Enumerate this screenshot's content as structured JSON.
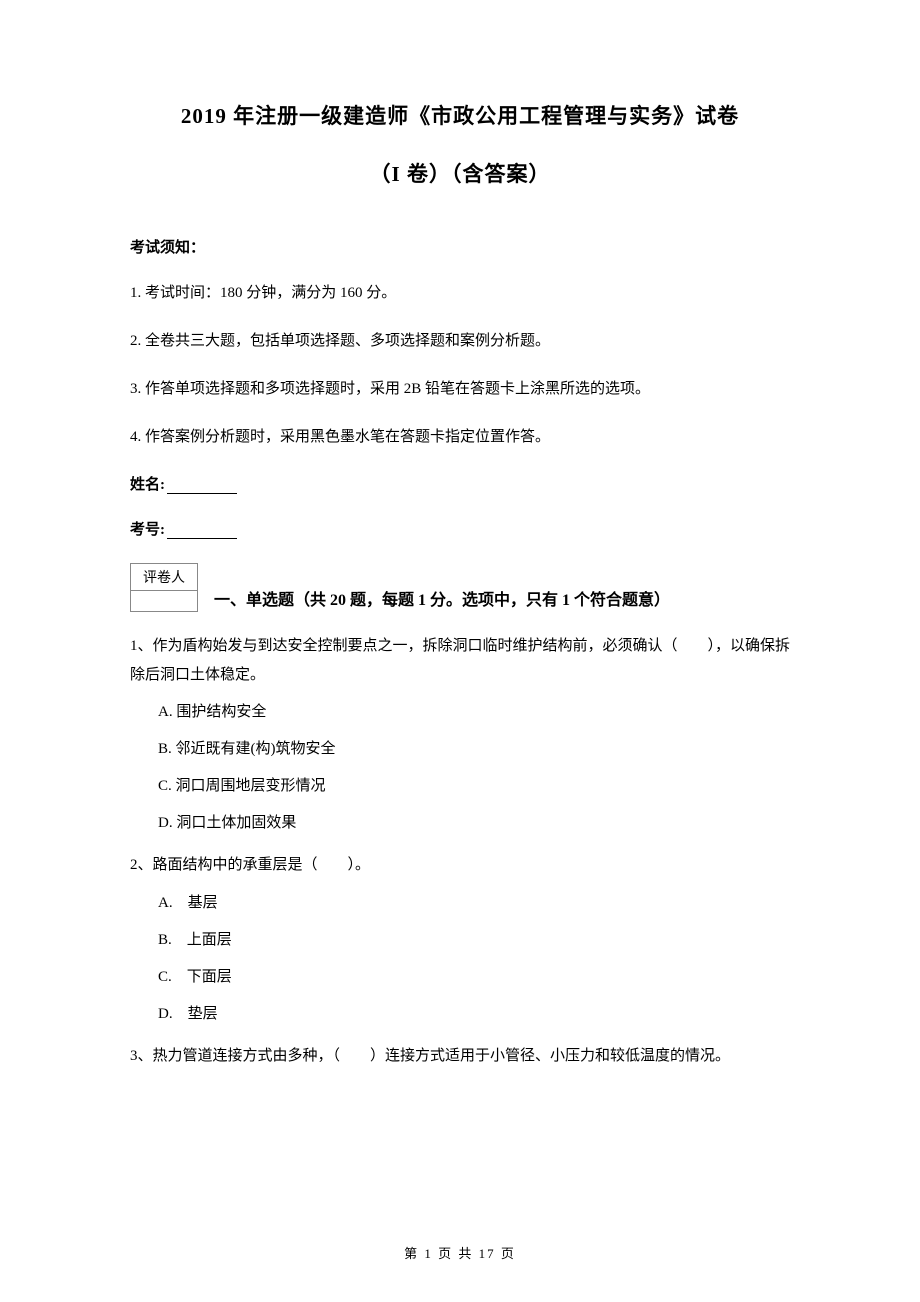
{
  "header": {
    "title_main": "2019 年注册一级建造师《市政公用工程管理与实务》试卷",
    "title_sub": "（I 卷）（含答案）"
  },
  "notice": {
    "heading": "考试须知：",
    "items": [
      "1. 考试时间：180 分钟，满分为 160 分。",
      "2. 全卷共三大题，包括单项选择题、多项选择题和案例分析题。",
      "3. 作答单项选择题和多项选择题时，采用 2B 铅笔在答题卡上涂黑所选的选项。",
      "4. 作答案例分析题时，采用黑色墨水笔在答题卡指定位置作答。"
    ]
  },
  "form": {
    "name_label": "姓名:",
    "id_label": "考号:"
  },
  "section1": {
    "grader_label": "评卷人",
    "title": "一、单选题（共 20 题，每题 1 分。选项中，只有 1 个符合题意）"
  },
  "questions": [
    {
      "text": "1、作为盾构始发与到达安全控制要点之一，拆除洞口临时维护结构前，必须确认（　　），以确保拆除后洞口土体稳定。",
      "options": [
        "A. 围护结构安全",
        "B. 邻近既有建(构)筑物安全",
        "C. 洞口周围地层变形情况",
        "D. 洞口土体加固效果"
      ]
    },
    {
      "text": "2、路面结构中的承重层是（　　）。",
      "options": [
        "A.　基层",
        "B.　上面层",
        "C.　下面层",
        "D.　垫层"
      ]
    },
    {
      "text": "3、热力管道连接方式由多种，（　　）连接方式适用于小管径、小压力和较低温度的情况。",
      "options": []
    }
  ],
  "footer": {
    "text": "第 1 页 共 17 页"
  },
  "styles": {
    "text_color": "#000000",
    "background_color": "#ffffff",
    "border_color": "#888888",
    "title_fontsize": 21,
    "body_fontsize": 15,
    "footer_fontsize": 13
  }
}
